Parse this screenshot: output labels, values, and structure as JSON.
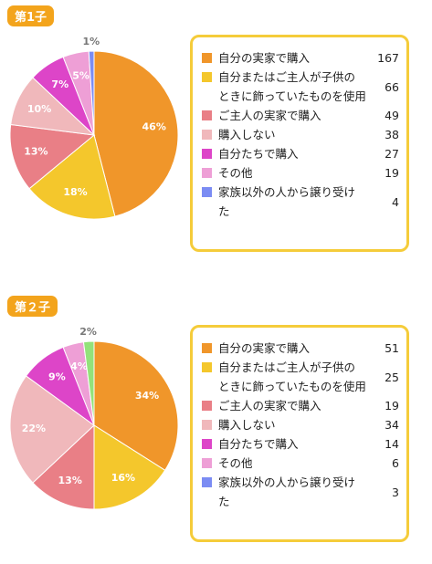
{
  "chart_data": [
    {
      "type": "pie",
      "title": "第1子",
      "categories": [
        "自分の実家で購入",
        "自分またはご主人が子供のときに飾っていたものを使用",
        "ご主人の実家で購入",
        "購入しない",
        "自分たちで購入",
        "その他",
        "家族以外の人から譲り受けた"
      ],
      "values": [
        46,
        18,
        13,
        10,
        7,
        5,
        1
      ],
      "value_labels": [
        "46%",
        "18%",
        "13%",
        "10%",
        "7%",
        "5%",
        "1%"
      ],
      "counts": [
        167,
        66,
        49,
        38,
        27,
        19,
        4
      ],
      "colors": [
        "#f0962a",
        "#f4c72c",
        "#e97f86",
        "#f0b8bb",
        "#dd45c8",
        "#ee9fd6",
        "#7b8cf3"
      ],
      "legend_colors": [
        "#f0962a",
        "#f4c72c",
        "#e97f86",
        "#f0b8bb",
        "#dd45c8",
        "#ee9fd6",
        "#7b8cf3"
      ]
    },
    {
      "type": "pie",
      "title": "第２子",
      "categories": [
        "自分の実家で購入",
        "自分またはご主人が子供のときに飾っていたものを使用",
        "ご主人の実家で購入",
        "購入しない",
        "自分たちで購入",
        "その他",
        "家族以外の人から譲り受けた"
      ],
      "values": [
        34,
        16,
        13,
        22,
        9,
        4,
        2
      ],
      "value_labels": [
        "34%",
        "16%",
        "13%",
        "22%",
        "9%",
        "4%",
        "2%"
      ],
      "counts": [
        51,
        25,
        19,
        34,
        14,
        6,
        3
      ],
      "colors": [
        "#f0962a",
        "#f4c72c",
        "#e97f86",
        "#f0b8bb",
        "#dd45c8",
        "#ee9fd6",
        "#93e27a"
      ],
      "legend_colors": [
        "#f0962a",
        "#f4c72c",
        "#e97f86",
        "#f0b8bb",
        "#dd45c8",
        "#ee9fd6",
        "#7b8cf3"
      ]
    }
  ]
}
